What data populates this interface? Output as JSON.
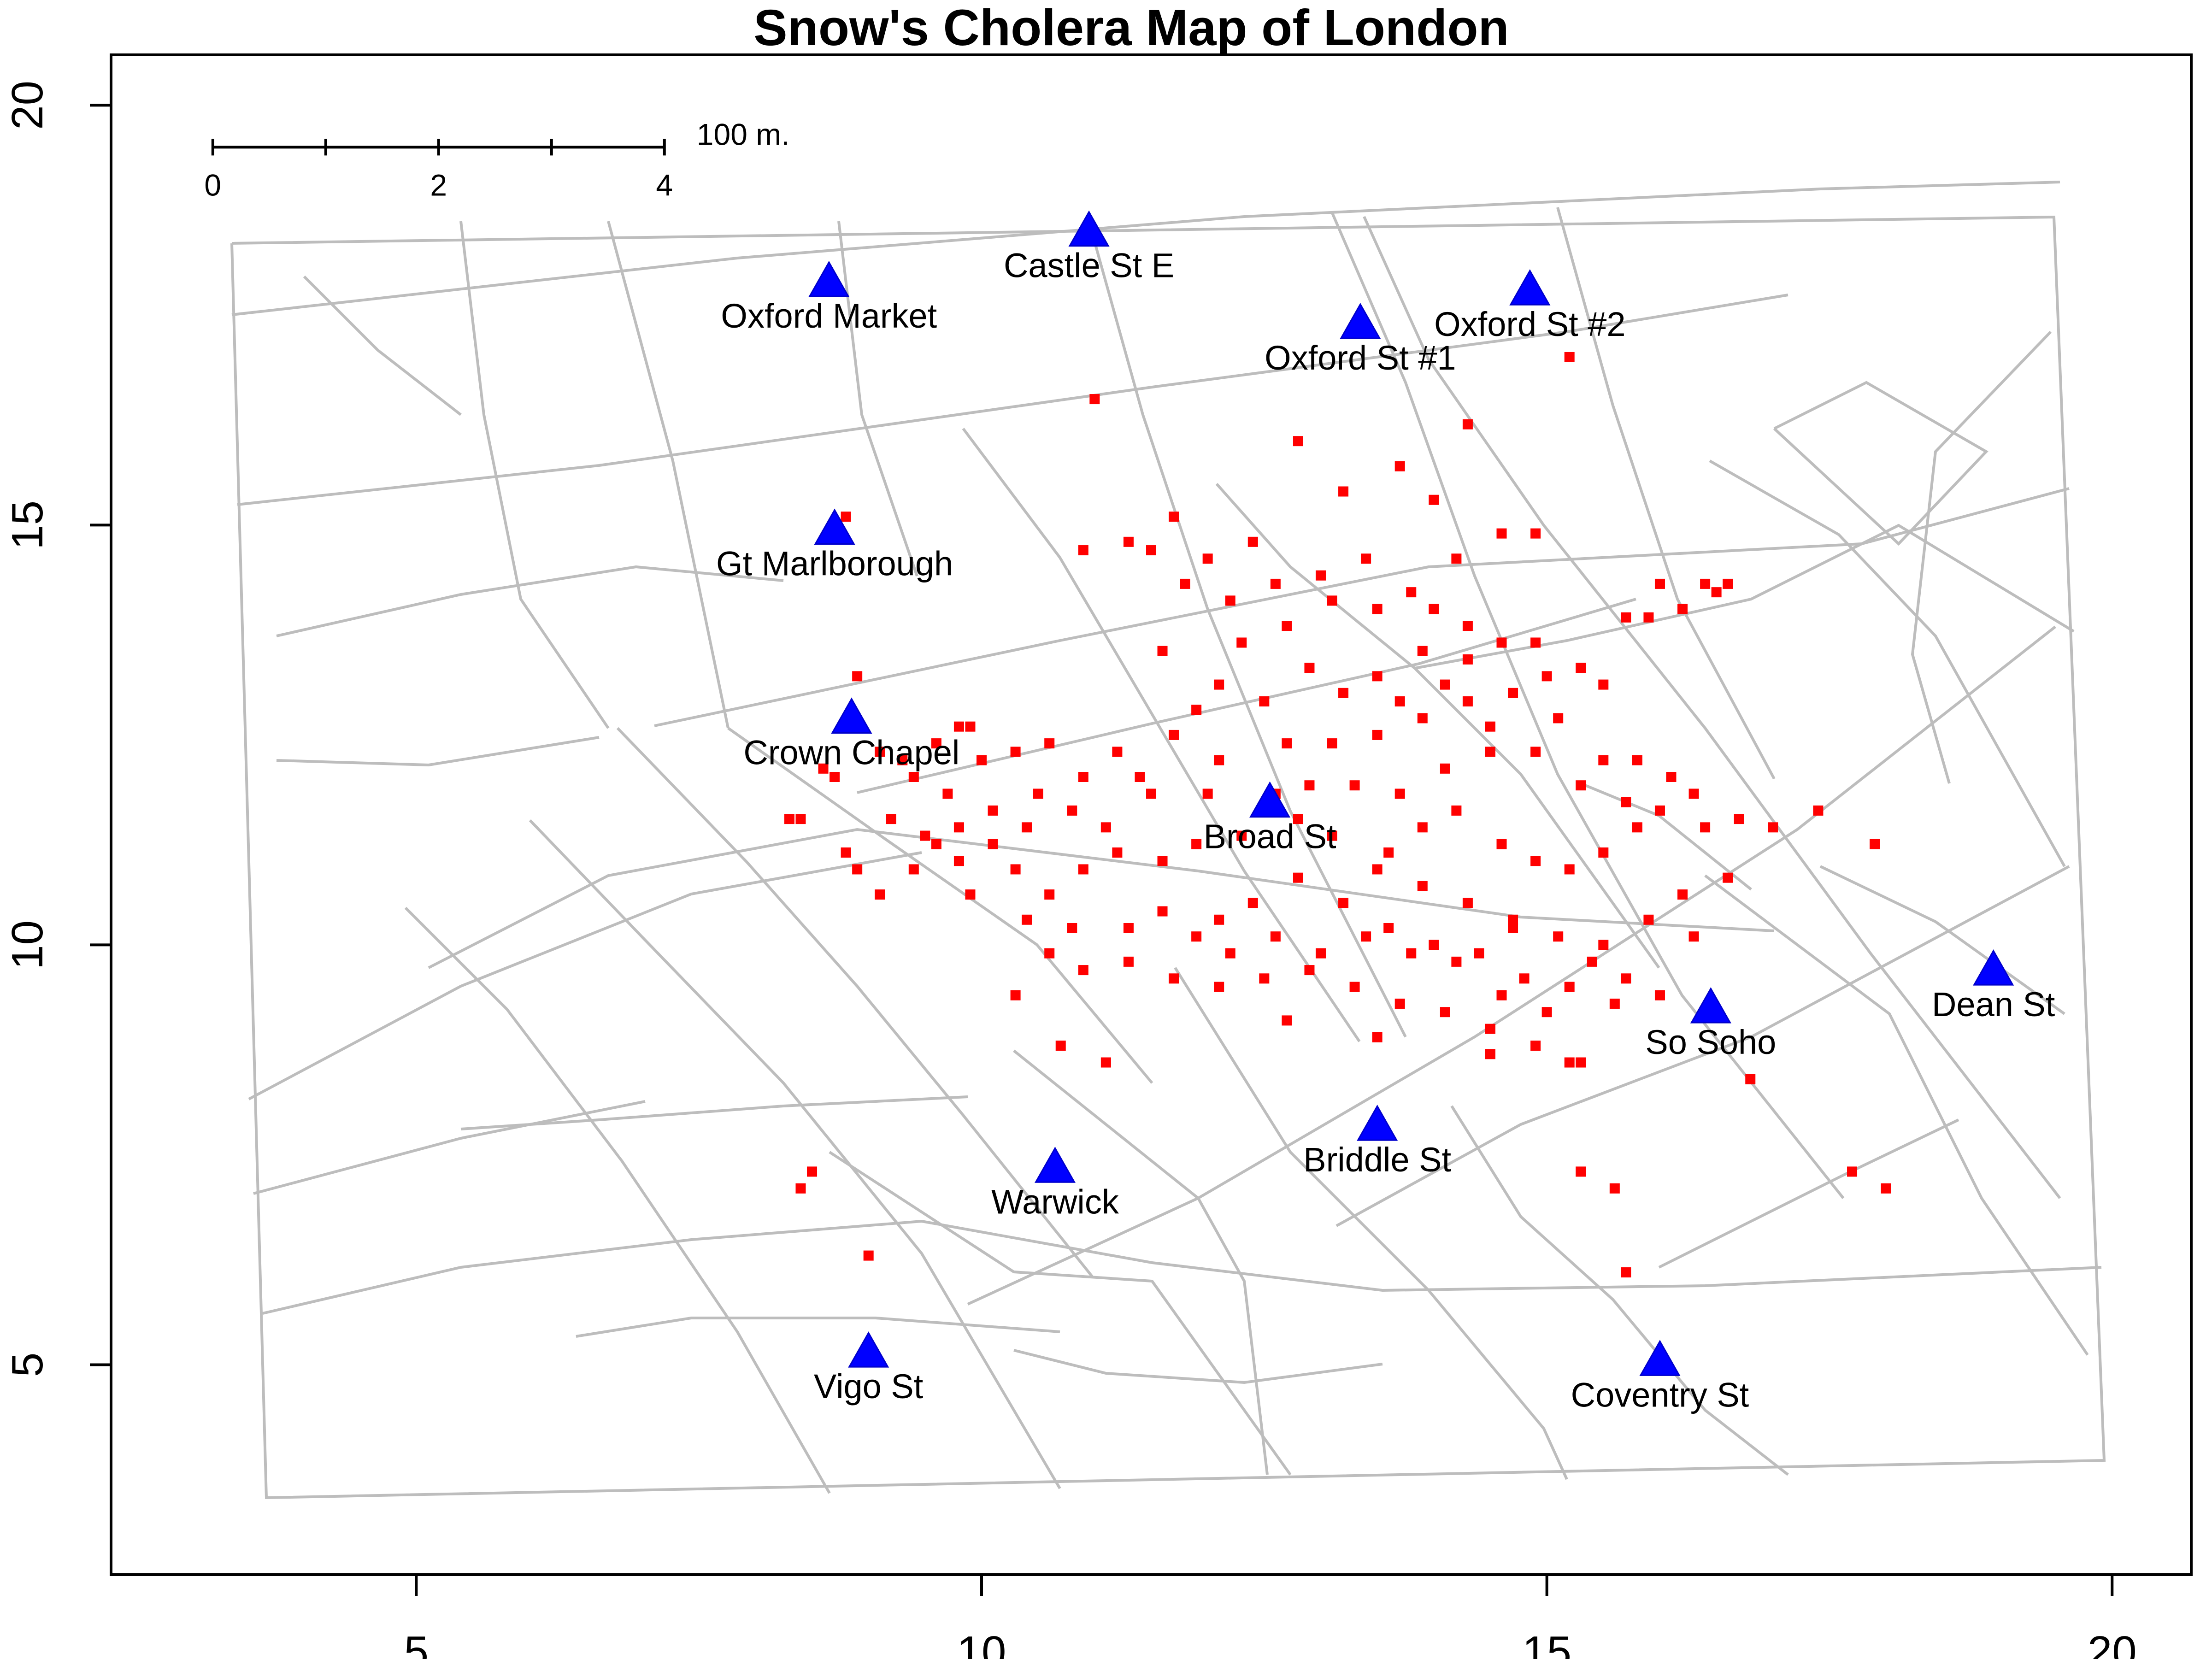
{
  "chart_data": {
    "type": "scatter",
    "title": "Snow's Cholera Map of London",
    "xlim": [
      2.3,
      20.7
    ],
    "ylim": [
      2.5,
      20.6
    ],
    "x_ticks": [
      5,
      10,
      15,
      20
    ],
    "y_ticks": [
      5,
      10,
      15,
      20
    ],
    "grid": false,
    "scale_bar": {
      "ticks": [
        0,
        1,
        2,
        3,
        4
      ],
      "labels": [
        "0",
        "2",
        "4"
      ],
      "label_positions": [
        0,
        2,
        4
      ],
      "unit_label": "100 m.",
      "origin": [
        3.2,
        19.5
      ]
    },
    "pumps": {
      "color": "#0000ff",
      "marker": "triangle",
      "points": [
        {
          "name": "Oxford Market",
          "x": 8.65,
          "y": 17.9
        },
        {
          "name": "Castle St E",
          "x": 10.95,
          "y": 18.5
        },
        {
          "name": "Oxford St #1",
          "x": 13.35,
          "y": 17.4
        },
        {
          "name": "Oxford St #2",
          "x": 14.85,
          "y": 17.8
        },
        {
          "name": "Gt Marlborough",
          "x": 8.7,
          "y": 14.95
        },
        {
          "name": "Crown Chapel",
          "x": 8.85,
          "y": 12.7
        },
        {
          "name": "Broad St",
          "x": 12.55,
          "y": 11.7
        },
        {
          "name": "Dean St",
          "x": 18.95,
          "y": 9.7
        },
        {
          "name": "So Soho",
          "x": 16.45,
          "y": 9.25
        },
        {
          "name": "Briddle St",
          "x": 13.5,
          "y": 7.85
        },
        {
          "name": "Warwick",
          "x": 10.65,
          "y": 7.35
        },
        {
          "name": "Vigo St",
          "x": 9.0,
          "y": 5.15
        },
        {
          "name": "Coventry St",
          "x": 16.0,
          "y": 5.05
        }
      ]
    },
    "deaths": {
      "color": "#ff0000",
      "marker": "square",
      "points": [
        [
          13.6,
          11.1
        ],
        [
          9.9,
          12.6
        ],
        [
          14.7,
          10.2
        ],
        [
          15.2,
          17.0
        ],
        [
          13.2,
          15.4
        ],
        [
          11.0,
          16.5
        ],
        [
          11.6,
          13.5
        ],
        [
          12.3,
          13.6
        ],
        [
          12.9,
          13.3
        ],
        [
          13.2,
          13.0
        ],
        [
          13.5,
          13.2
        ],
        [
          13.9,
          13.5
        ],
        [
          14.3,
          13.4
        ],
        [
          14.9,
          13.6
        ],
        [
          15.3,
          13.3
        ],
        [
          15.5,
          13.1
        ],
        [
          15.7,
          13.9
        ],
        [
          16.0,
          14.3
        ],
        [
          16.4,
          14.3
        ],
        [
          16.6,
          14.3
        ],
        [
          11.5,
          14.7
        ],
        [
          11.8,
          14.3
        ],
        [
          12.2,
          14.1
        ],
        [
          12.6,
          14.3
        ],
        [
          13.0,
          14.4
        ],
        [
          13.4,
          14.6
        ],
        [
          13.8,
          14.2
        ],
        [
          14.2,
          14.6
        ],
        [
          14.6,
          14.9
        ],
        [
          13.7,
          15.7
        ],
        [
          14.3,
          16.2
        ],
        [
          12.8,
          16.0
        ],
        [
          10.9,
          14.7
        ],
        [
          11.3,
          14.8
        ],
        [
          9.8,
          12.6
        ],
        [
          10.3,
          12.3
        ],
        [
          10.5,
          11.8
        ],
        [
          10.9,
          12.0
        ],
        [
          11.4,
          12.0
        ],
        [
          11.7,
          12.5
        ],
        [
          11.9,
          12.8
        ],
        [
          12.1,
          12.2
        ],
        [
          12.7,
          12.4
        ],
        [
          13.1,
          12.4
        ],
        [
          13.5,
          12.5
        ],
        [
          13.9,
          12.7
        ],
        [
          14.3,
          12.9
        ],
        [
          14.7,
          13.0
        ],
        [
          15.1,
          12.7
        ],
        [
          15.5,
          12.2
        ],
        [
          15.8,
          12.2
        ],
        [
          16.1,
          12.0
        ],
        [
          16.4,
          11.4
        ],
        [
          16.7,
          11.5
        ],
        [
          17.0,
          11.4
        ],
        [
          17.4,
          11.6
        ],
        [
          17.9,
          11.2
        ],
        [
          8.4,
          11.5
        ],
        [
          8.8,
          11.1
        ],
        [
          8.9,
          10.9
        ],
        [
          9.1,
          10.6
        ],
        [
          9.4,
          10.9
        ],
        [
          9.6,
          11.2
        ],
        [
          9.8,
          11.4
        ],
        [
          10.1,
          11.2
        ],
        [
          10.3,
          10.9
        ],
        [
          10.6,
          10.6
        ],
        [
          10.9,
          10.9
        ],
        [
          11.2,
          11.1
        ],
        [
          11.6,
          11.0
        ],
        [
          11.9,
          11.2
        ],
        [
          12.3,
          11.3
        ],
        [
          12.8,
          11.5
        ],
        [
          13.1,
          11.3
        ],
        [
          13.5,
          10.9
        ],
        [
          13.9,
          10.7
        ],
        [
          14.3,
          10.5
        ],
        [
          14.7,
          10.3
        ],
        [
          15.1,
          10.1
        ],
        [
          15.5,
          10.0
        ],
        [
          15.9,
          10.3
        ],
        [
          16.3,
          10.1
        ],
        [
          8.7,
          12.0
        ],
        [
          9.1,
          12.3
        ],
        [
          9.4,
          12.0
        ],
        [
          9.7,
          11.8
        ],
        [
          10.1,
          11.6
        ],
        [
          10.4,
          11.4
        ],
        [
          10.8,
          11.6
        ],
        [
          11.1,
          11.4
        ],
        [
          12.1,
          10.3
        ],
        [
          12.4,
          10.5
        ],
        [
          12.8,
          10.8
        ],
        [
          13.2,
          10.5
        ],
        [
          13.6,
          10.2
        ],
        [
          14.0,
          10.0
        ],
        [
          14.4,
          9.9
        ],
        [
          14.8,
          9.6
        ],
        [
          15.2,
          9.5
        ],
        [
          15.6,
          9.3
        ],
        [
          16.0,
          9.4
        ],
        [
          10.6,
          9.9
        ],
        [
          10.9,
          9.7
        ],
        [
          11.3,
          9.8
        ],
        [
          11.7,
          9.6
        ],
        [
          12.1,
          9.5
        ],
        [
          12.5,
          9.6
        ],
        [
          12.9,
          9.7
        ],
        [
          13.3,
          9.5
        ],
        [
          13.7,
          9.3
        ],
        [
          14.1,
          9.2
        ],
        [
          14.5,
          9.0
        ],
        [
          14.9,
          8.8
        ],
        [
          15.3,
          8.6
        ],
        [
          10.3,
          9.4
        ],
        [
          10.7,
          8.8
        ],
        [
          11.1,
          8.6
        ],
        [
          12.7,
          9.1
        ],
        [
          13.5,
          8.9
        ],
        [
          14.5,
          8.7
        ],
        [
          15.2,
          8.6
        ],
        [
          16.8,
          8.4
        ],
        [
          8.4,
          7.1
        ],
        [
          8.5,
          7.3
        ],
        [
          9.0,
          6.3
        ],
        [
          15.6,
          7.1
        ],
        [
          15.7,
          6.1
        ],
        [
          15.3,
          7.3
        ],
        [
          17.7,
          7.3
        ],
        [
          18.0,
          7.1
        ],
        [
          8.8,
          15.1
        ],
        [
          8.9,
          13.2
        ],
        [
          8.6,
          12.1
        ],
        [
          8.3,
          11.5
        ],
        [
          9.3,
          12.2
        ],
        [
          9.6,
          12.4
        ],
        [
          10.0,
          12.2
        ],
        [
          10.6,
          12.4
        ],
        [
          11.2,
          12.3
        ],
        [
          11.5,
          11.8
        ],
        [
          12.6,
          11.8
        ],
        [
          12.9,
          11.9
        ],
        [
          13.3,
          11.9
        ],
        [
          13.7,
          11.8
        ],
        [
          14.1,
          12.1
        ],
        [
          14.5,
          12.3
        ],
        [
          14.9,
          12.3
        ],
        [
          15.3,
          11.9
        ],
        [
          15.7,
          11.7
        ],
        [
          15.8,
          11.4
        ],
        [
          14.6,
          11.2
        ],
        [
          14.9,
          11.0
        ],
        [
          15.2,
          10.9
        ],
        [
          15.5,
          11.1
        ],
        [
          13.9,
          11.4
        ],
        [
          14.2,
          11.6
        ],
        [
          12.0,
          11.8
        ],
        [
          11.3,
          10.2
        ],
        [
          11.6,
          10.4
        ],
        [
          11.9,
          10.1
        ],
        [
          12.2,
          9.9
        ],
        [
          12.6,
          10.1
        ],
        [
          13.0,
          9.9
        ],
        [
          13.4,
          10.1
        ],
        [
          13.8,
          9.9
        ],
        [
          14.2,
          9.8
        ],
        [
          14.6,
          9.4
        ],
        [
          15.0,
          9.2
        ],
        [
          15.4,
          9.8
        ],
        [
          15.7,
          9.6
        ],
        [
          16.2,
          10.6
        ],
        [
          16.6,
          10.8
        ],
        [
          9.9,
          10.6
        ],
        [
          10.4,
          10.3
        ],
        [
          10.8,
          10.2
        ],
        [
          12.5,
          12.9
        ],
        [
          12.1,
          13.1
        ],
        [
          13.5,
          14.0
        ],
        [
          13.1,
          14.1
        ],
        [
          12.7,
          13.8
        ],
        [
          14.0,
          14.0
        ],
        [
          14.3,
          13.8
        ],
        [
          14.6,
          13.6
        ],
        [
          15.0,
          13.2
        ],
        [
          15.9,
          13.9
        ],
        [
          16.2,
          14.0
        ],
        [
          16.5,
          14.2
        ],
        [
          13.7,
          12.9
        ],
        [
          14.1,
          13.1
        ],
        [
          14.5,
          12.6
        ],
        [
          12.4,
          14.8
        ],
        [
          12.0,
          14.6
        ],
        [
          11.7,
          15.1
        ],
        [
          14.0,
          15.3
        ],
        [
          14.9,
          14.9
        ],
        [
          16.0,
          11.6
        ],
        [
          16.3,
          11.8
        ],
        [
          9.2,
          11.5
        ],
        [
          9.5,
          11.3
        ],
        [
          9.8,
          11.0
        ]
      ]
    }
  }
}
